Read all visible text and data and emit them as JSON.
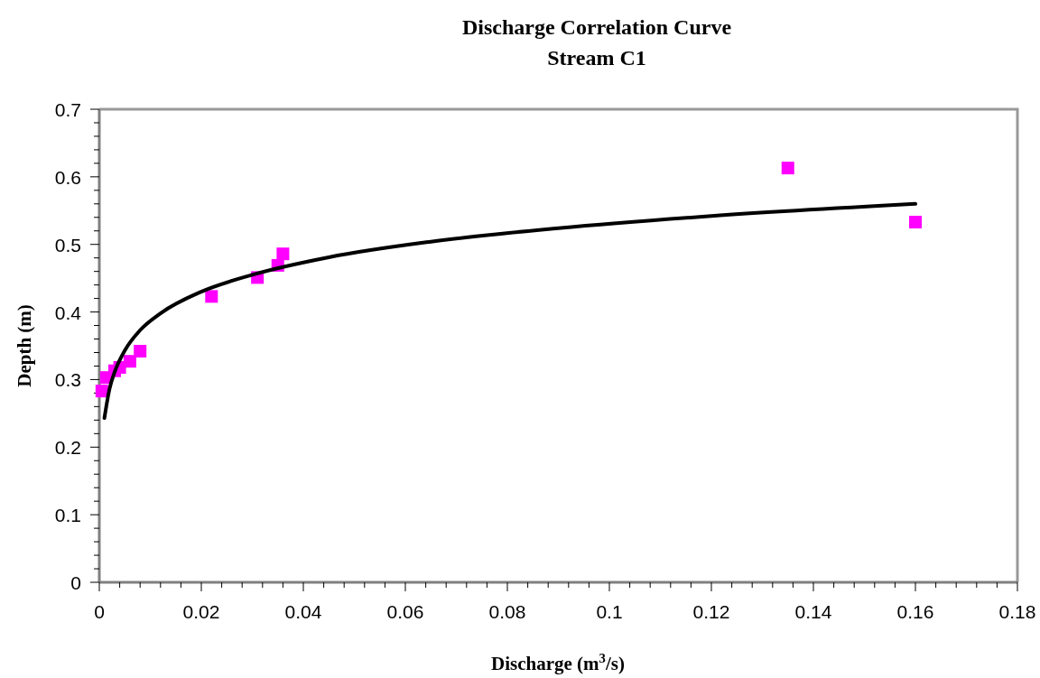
{
  "chart_data": {
    "type": "scatter",
    "title": "Discharge Correlation Curve",
    "subtitle": "Stream C1",
    "xlabel": "Discharge (m$^{3}$/s)",
    "ylabel": "Depth (m)",
    "xlim": [
      0,
      0.18
    ],
    "ylim": [
      0,
      0.7
    ],
    "xticks": [
      0,
      {
        "value": 0.004,
        "label": null
      },
      {
        "value": 0.008,
        "label": null
      },
      {
        "value": 0.012,
        "label": null
      },
      {
        "value": 0.016,
        "label": null
      },
      0.02,
      {
        "value": 0.024,
        "label": null
      },
      {
        "value": 0.028,
        "label": null
      },
      {
        "value": 0.032,
        "label": null
      },
      {
        "value": 0.036,
        "label": null
      },
      0.04,
      {
        "value": 0.044,
        "label": null
      },
      {
        "value": 0.048,
        "label": null
      },
      {
        "value": 0.052,
        "label": null
      },
      {
        "value": 0.056,
        "label": null
      },
      0.06,
      {
        "value": 0.064,
        "label": null
      },
      {
        "value": 0.068,
        "label": null
      },
      {
        "value": 0.072,
        "label": null
      },
      {
        "value": 0.076,
        "label": null
      },
      0.08,
      {
        "value": 0.084,
        "label": null
      },
      {
        "value": 0.088,
        "label": null
      },
      {
        "value": 0.092,
        "label": null
      },
      {
        "value": 0.096,
        "label": null
      },
      0.1,
      {
        "value": 0.104,
        "label": null
      },
      {
        "value": 0.108,
        "label": null
      },
      {
        "value": 0.112,
        "label": null
      },
      {
        "value": 0.116,
        "label": null
      },
      0.12,
      {
        "value": 0.124,
        "label": null
      },
      {
        "value": 0.128,
        "label": null
      },
      {
        "value": 0.132,
        "label": null
      },
      {
        "value": 0.136,
        "label": null
      },
      0.14,
      {
        "value": 0.144,
        "label": null
      },
      {
        "value": 0.148,
        "label": null
      },
      {
        "value": 0.152,
        "label": null
      },
      {
        "value": 0.156,
        "label": null
      },
      0.16,
      {
        "value": 0.164,
        "label": null
      },
      {
        "value": 0.168,
        "label": null
      },
      {
        "value": 0.172,
        "label": null
      },
      {
        "value": 0.176,
        "label": null
      },
      0.18
    ],
    "yticks": [
      0,
      {
        "value": 0.02,
        "label": null
      },
      {
        "value": 0.04,
        "label": null
      },
      {
        "value": 0.06,
        "label": null
      },
      {
        "value": 0.08,
        "label": null
      },
      0.1,
      {
        "value": 0.12,
        "label": null
      },
      {
        "value": 0.14,
        "label": null
      },
      {
        "value": 0.16,
        "label": null
      },
      {
        "value": 0.18,
        "label": null
      },
      0.2,
      {
        "value": 0.22,
        "label": null
      },
      {
        "value": 0.24,
        "label": null
      },
      {
        "value": 0.26,
        "label": null
      },
      {
        "value": 0.28,
        "label": null
      },
      0.3,
      {
        "value": 0.32,
        "label": null
      },
      {
        "value": 0.34,
        "label": null
      },
      {
        "value": 0.36,
        "label": null
      },
      {
        "value": 0.38,
        "label": null
      },
      0.4,
      {
        "value": 0.42,
        "label": null
      },
      {
        "value": 0.44,
        "label": null
      },
      {
        "value": 0.46,
        "label": null
      },
      {
        "value": 0.48,
        "label": null
      },
      0.5,
      {
        "value": 0.52,
        "label": null
      },
      {
        "value": 0.54,
        "label": null
      },
      {
        "value": 0.56,
        "label": null
      },
      {
        "value": 0.58,
        "label": null
      },
      0.6,
      {
        "value": 0.62,
        "label": null
      },
      {
        "value": 0.64,
        "label": null
      },
      {
        "value": 0.66,
        "label": null
      },
      {
        "value": 0.68,
        "label": null
      },
      0.7
    ],
    "series": [
      {
        "color": "#ff00ff",
        "marker": "square",
        "x": [
          0.0005,
          0.0014,
          0.003,
          0.004,
          0.006,
          0.008,
          0.022,
          0.031,
          0.035,
          0.036,
          0.135,
          0.16
        ],
        "values": [
          0.283,
          0.303,
          0.313,
          0.318,
          0.327,
          0.342,
          0.423,
          0.451,
          0.469,
          0.486,
          0.613,
          0.533
        ]
      },
      {
        "type": "line",
        "color": "#000000",
        "marker": "none",
        "line_style": "solid",
        "x": [
          0.001,
          0.002,
          0.003,
          0.005,
          0.008,
          0.012,
          0.02,
          0.03,
          0.045,
          0.065,
          0.09,
          0.12,
          0.16
        ],
        "values": [
          0.243,
          0.286,
          0.311,
          0.343,
          0.373,
          0.398,
          0.43,
          0.455,
          0.481,
          0.504,
          0.524,
          0.542,
          0.56
        ]
      }
    ]
  }
}
